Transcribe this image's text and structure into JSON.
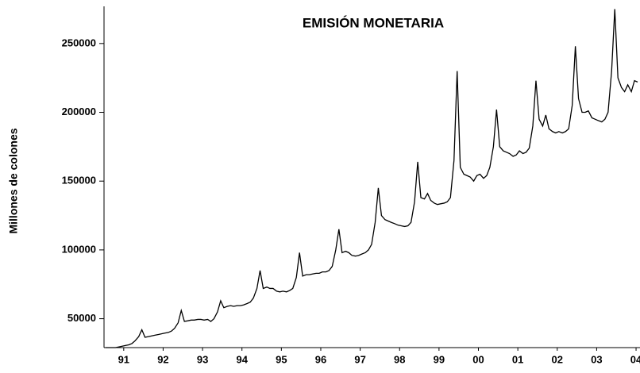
{
  "chart_data": {
    "type": "line",
    "title": "EMISIÓN MONETARIA",
    "ylabel": "Millones de colones",
    "color": "#000000",
    "xlim": [
      1991.0,
      2004.6
    ],
    "xticks": [
      {
        "value": 1991.5,
        "label": "91"
      },
      {
        "value": 1992.5,
        "label": "92"
      },
      {
        "value": 1993.5,
        "label": "93"
      },
      {
        "value": 1994.5,
        "label": "94"
      },
      {
        "value": 1995.5,
        "label": "95"
      },
      {
        "value": 1996.5,
        "label": "96"
      },
      {
        "value": 1997.5,
        "label": "97"
      },
      {
        "value": 1998.5,
        "label": "98"
      },
      {
        "value": 1999.5,
        "label": "99"
      },
      {
        "value": 2000.5,
        "label": "00"
      },
      {
        "value": 2001.5,
        "label": "01"
      },
      {
        "value": 2002.5,
        "label": "02"
      },
      {
        "value": 2003.5,
        "label": "03"
      },
      {
        "value": 2004.5,
        "label": "04"
      }
    ],
    "ylim": [
      29000,
      277000
    ],
    "yticks": [
      50000,
      100000,
      150000,
      200000,
      250000
    ],
    "x": [
      1991.04,
      1991.13,
      1991.21,
      1991.29,
      1991.38,
      1991.46,
      1991.54,
      1991.63,
      1991.71,
      1991.79,
      1991.88,
      1991.96,
      1992.04,
      1992.13,
      1992.21,
      1992.29,
      1992.38,
      1992.46,
      1992.54,
      1992.63,
      1992.71,
      1992.79,
      1992.88,
      1992.96,
      1993.04,
      1993.13,
      1993.21,
      1993.29,
      1993.38,
      1993.46,
      1993.54,
      1993.63,
      1993.71,
      1993.79,
      1993.88,
      1993.96,
      1994.04,
      1994.13,
      1994.21,
      1994.29,
      1994.38,
      1994.46,
      1994.54,
      1994.63,
      1994.71,
      1994.79,
      1994.88,
      1994.96,
      1995.04,
      1995.13,
      1995.21,
      1995.29,
      1995.38,
      1995.46,
      1995.54,
      1995.63,
      1995.71,
      1995.79,
      1995.88,
      1995.96,
      1996.04,
      1996.13,
      1996.21,
      1996.29,
      1996.38,
      1996.46,
      1996.54,
      1996.63,
      1996.71,
      1996.79,
      1996.88,
      1996.96,
      1997.04,
      1997.13,
      1997.21,
      1997.29,
      1997.38,
      1997.46,
      1997.54,
      1997.63,
      1997.71,
      1997.79,
      1997.88,
      1997.96,
      1998.04,
      1998.13,
      1998.21,
      1998.29,
      1998.38,
      1998.46,
      1998.54,
      1998.63,
      1998.71,
      1998.79,
      1998.88,
      1998.96,
      1999.04,
      1999.13,
      1999.21,
      1999.29,
      1999.38,
      1999.46,
      1999.54,
      1999.63,
      1999.71,
      1999.79,
      1999.88,
      1999.96,
      2000.04,
      2000.13,
      2000.21,
      2000.29,
      2000.38,
      2000.46,
      2000.54,
      2000.63,
      2000.71,
      2000.79,
      2000.88,
      2000.96,
      2001.04,
      2001.13,
      2001.21,
      2001.29,
      2001.38,
      2001.46,
      2001.54,
      2001.63,
      2001.71,
      2001.79,
      2001.88,
      2001.96,
      2002.04,
      2002.13,
      2002.21,
      2002.29,
      2002.38,
      2002.46,
      2002.54,
      2002.63,
      2002.71,
      2002.79,
      2002.88,
      2002.96,
      2003.04,
      2003.13,
      2003.21,
      2003.29,
      2003.38,
      2003.46,
      2003.54,
      2003.63,
      2003.71,
      2003.79,
      2003.88,
      2003.96,
      2004.04,
      2004.13,
      2004.21,
      2004.29,
      2004.38,
      2004.46,
      2004.54
    ],
    "values": [
      29000,
      29000,
      29000,
      29000,
      29500,
      30000,
      30500,
      31000,
      32000,
      34000,
      37000,
      42000,
      36500,
      37000,
      37500,
      38000,
      38500,
      39000,
      39500,
      40000,
      41000,
      43000,
      47000,
      56000,
      48000,
      48500,
      49000,
      49000,
      49500,
      49500,
      49000,
      49500,
      48000,
      50000,
      55000,
      63000,
      58000,
      59000,
      59500,
      59000,
      59500,
      59500,
      60000,
      61000,
      62000,
      65000,
      72000,
      85000,
      72000,
      73000,
      72000,
      72000,
      70000,
      69500,
      70000,
      69500,
      70500,
      72000,
      80000,
      98000,
      81000,
      82000,
      82000,
      82500,
      83000,
      83000,
      84000,
      84000,
      85000,
      88000,
      100000,
      115000,
      98000,
      99000,
      98000,
      96000,
      95500,
      96000,
      97000,
      98000,
      100000,
      104000,
      120000,
      145000,
      125000,
      122000,
      121000,
      120000,
      119000,
      118000,
      117500,
      117000,
      117500,
      120000,
      135000,
      164000,
      138000,
      137000,
      141000,
      136000,
      134000,
      133000,
      133500,
      134000,
      135000,
      138000,
      165000,
      230000,
      160000,
      155000,
      154000,
      153000,
      150000,
      154000,
      155000,
      152000,
      154000,
      160000,
      175000,
      202000,
      175000,
      172000,
      171000,
      170000,
      168000,
      169000,
      172000,
      170000,
      171000,
      174000,
      190000,
      223000,
      195000,
      190000,
      198000,
      188000,
      186000,
      185000,
      186000,
      185000,
      186000,
      188000,
      205000,
      248000,
      210000,
      200000,
      200000,
      201000,
      196000,
      195000,
      194000,
      193000,
      195000,
      200000,
      230000,
      275000,
      225000,
      218000,
      215000,
      220000,
      215000,
      223000,
      222000
    ]
  }
}
